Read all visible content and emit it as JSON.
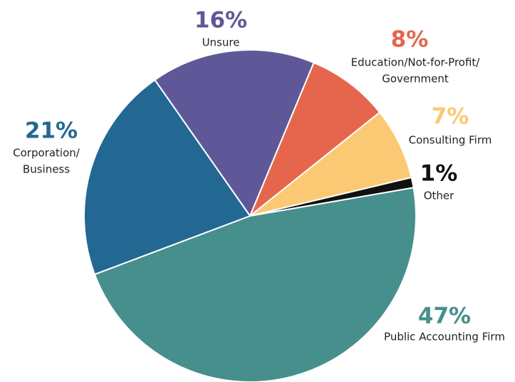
{
  "chart_data": {
    "type": "pie",
    "categories": [
      [
        "Unsure"
      ],
      [
        "Education/Not-for-Profit/",
        "Government"
      ],
      [
        "Consulting Firm"
      ],
      [
        "Other"
      ],
      [
        "Public Accounting Firm"
      ],
      [
        "Corporation/",
        "Business"
      ]
    ],
    "values": [
      16,
      8,
      7,
      1,
      47,
      21
    ],
    "value_labels": [
      "16%",
      "8%",
      "7%",
      "1%",
      "47%",
      "21%"
    ],
    "colors": [
      "#5f5898",
      "#e5664d",
      "#fbc974",
      "#111111",
      "#468f8d",
      "#236893"
    ]
  }
}
